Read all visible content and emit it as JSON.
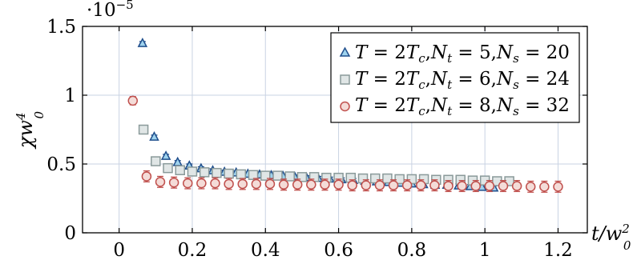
{
  "chart_data": {
    "type": "scatter",
    "xlabel": "t/w0^2",
    "ylabel": "χw0^4",
    "y_scale_label": "·10^−5",
    "xlim": [
      -0.1,
      1.28
    ],
    "ylim": [
      0,
      1.5
    ],
    "x_ticks": [
      "0",
      "0.2",
      "0.4",
      "0.6",
      "0.8",
      "1",
      "1.2"
    ],
    "x_tick_values": [
      0,
      0.2,
      0.4,
      0.6,
      0.8,
      1.0,
      1.2
    ],
    "y_ticks": [
      "0",
      "0.5",
      "1",
      "1.5"
    ],
    "y_tick_values": [
      0,
      0.5,
      1.0,
      1.5
    ],
    "grid": true,
    "legend_position": "top-right",
    "series": [
      {
        "name": "T = 2Tc,Nt = 5,Ns = 20",
        "marker": "triangle",
        "color": "#1f4e8c",
        "fill": "#9fd3ee",
        "x": [
          0.064,
          0.096,
          0.128,
          0.16,
          0.192,
          0.224,
          0.256,
          0.288,
          0.32,
          0.352,
          0.384,
          0.416,
          0.448,
          0.48,
          0.512,
          0.544,
          0.576,
          0.608,
          0.64,
          0.672,
          0.704,
          0.736,
          0.768,
          0.8,
          0.832,
          0.864,
          0.896,
          0.928,
          0.96,
          0.992,
          1.024
        ],
        "y": [
          1.38,
          0.7,
          0.56,
          0.515,
          0.49,
          0.47,
          0.455,
          0.445,
          0.44,
          0.43,
          0.425,
          0.42,
          0.415,
          0.41,
          0.405,
          0.4,
          0.395,
          0.39,
          0.385,
          0.38,
          0.375,
          0.37,
          0.365,
          0.36,
          0.355,
          0.35,
          0.35,
          0.345,
          0.34,
          0.335,
          0.33
        ],
        "err": [
          0.01,
          0.01,
          0.01,
          0.01,
          0.01,
          0.01,
          0.01,
          0.01,
          0.01,
          0.01,
          0.01,
          0.01,
          0.01,
          0.01,
          0.01,
          0.01,
          0.01,
          0.01,
          0.01,
          0.01,
          0.01,
          0.01,
          0.01,
          0.01,
          0.01,
          0.01,
          0.01,
          0.01,
          0.01,
          0.01,
          0.01
        ]
      },
      {
        "name": "T = 2Tc,Nt = 6,Ns = 24",
        "marker": "square",
        "color": "#8a9a9a",
        "fill": "#e0e6e6",
        "x": [
          0.0667,
          0.1,
          0.1333,
          0.1667,
          0.2,
          0.2333,
          0.2667,
          0.3,
          0.3333,
          0.3667,
          0.4,
          0.4333,
          0.4667,
          0.5,
          0.5333,
          0.5667,
          0.6,
          0.6333,
          0.6667,
          0.7,
          0.7333,
          0.7667,
          0.8,
          0.8333,
          0.8667,
          0.9,
          0.9333,
          0.9667,
          1.0,
          1.0333,
          1.0667
        ],
        "y": [
          0.75,
          0.52,
          0.47,
          0.455,
          0.445,
          0.44,
          0.435,
          0.43,
          0.425,
          0.42,
          0.415,
          0.415,
          0.41,
          0.405,
          0.405,
          0.4,
          0.4,
          0.4,
          0.395,
          0.395,
          0.395,
          0.39,
          0.39,
          0.39,
          0.385,
          0.385,
          0.385,
          0.38,
          0.38,
          0.375,
          0.375
        ],
        "err": [
          0.02,
          0.015,
          0.015,
          0.015,
          0.015,
          0.015,
          0.015,
          0.015,
          0.015,
          0.015,
          0.015,
          0.015,
          0.015,
          0.015,
          0.015,
          0.015,
          0.015,
          0.015,
          0.015,
          0.015,
          0.015,
          0.015,
          0.015,
          0.015,
          0.015,
          0.015,
          0.015,
          0.015,
          0.015,
          0.015,
          0.015
        ]
      },
      {
        "name": "T = 2Tc,Nt = 8,Ns = 32",
        "marker": "circle",
        "color": "#c0504d",
        "fill": "#f4dcd8",
        "x": [
          0.0375,
          0.075,
          0.1125,
          0.15,
          0.1875,
          0.225,
          0.2625,
          0.3,
          0.3375,
          0.375,
          0.4125,
          0.45,
          0.4875,
          0.525,
          0.5625,
          0.6,
          0.6375,
          0.675,
          0.7125,
          0.75,
          0.7875,
          0.825,
          0.8625,
          0.9,
          0.9375,
          0.975,
          1.0125,
          1.05,
          1.0875,
          1.125,
          1.1625,
          1.2
        ],
        "y": [
          0.96,
          0.41,
          0.37,
          0.365,
          0.36,
          0.36,
          0.36,
          0.355,
          0.355,
          0.355,
          0.355,
          0.35,
          0.35,
          0.35,
          0.35,
          0.35,
          0.345,
          0.345,
          0.345,
          0.345,
          0.345,
          0.345,
          0.345,
          0.34,
          0.34,
          0.34,
          0.34,
          0.34,
          0.34,
          0.335,
          0.335,
          0.335
        ],
        "err": [
          0.03,
          0.04,
          0.04,
          0.04,
          0.04,
          0.04,
          0.04,
          0.04,
          0.04,
          0.04,
          0.04,
          0.04,
          0.04,
          0.04,
          0.04,
          0.04,
          0.04,
          0.04,
          0.04,
          0.04,
          0.04,
          0.04,
          0.04,
          0.04,
          0.04,
          0.04,
          0.04,
          0.04,
          0.04,
          0.04,
          0.04,
          0.04
        ]
      }
    ]
  }
}
